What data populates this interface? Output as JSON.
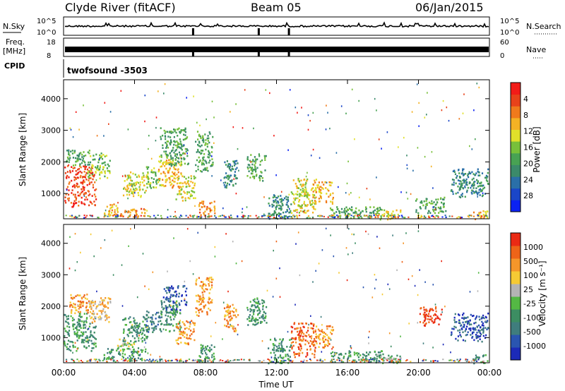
{
  "header": {
    "station": "Clyde River (fitACF)",
    "beam": "Beam 05",
    "date": "06/Jan/2015"
  },
  "strips": {
    "nsky_label": "N.Sky",
    "nsearch_label": "N.Search",
    "freq_label": "Freq.",
    "freq_unit": "[MHz]",
    "nave_label": "Nave",
    "cpid_label": "CPID",
    "cpid_value": "twofsound -3503",
    "nsky_ticks": [
      "10^5",
      "10^0"
    ],
    "nsearch_ticks": [
      "10^5",
      "10^0"
    ],
    "freq_ticks": [
      "18",
      "8"
    ],
    "nave_ticks": [
      "60",
      "0"
    ],
    "gap_hours": [
      7.3,
      11.0,
      12.7
    ]
  },
  "chart_data": [
    {
      "type": "heatmap",
      "name": "power",
      "ylabel": "Slant Range [km]",
      "xlabel": "",
      "xlim": [
        0,
        24
      ],
      "ylim": [
        200,
        4600
      ],
      "y_ticks": [
        1000,
        2000,
        3000,
        4000
      ],
      "x_tick_labels": [
        "00:00",
        "04:00",
        "08:00",
        "12:00",
        "16:00",
        "20:00",
        "00:00"
      ],
      "colorbar": {
        "label": "Power [dB]",
        "ticks": [
          "4",
          "8",
          "12",
          "16",
          "20",
          "24",
          "28"
        ],
        "colors": [
          "#0b22f2",
          "#1a46c8",
          "#2a6fa8",
          "#3b8a6a",
          "#48a253",
          "#78c03a",
          "#e0e02a",
          "#f4b224",
          "#f07a1c",
          "#e8421a",
          "#f21c18"
        ]
      },
      "regions": [
        {
          "t0": 0.0,
          "t1": 1.8,
          "r0": 600,
          "r1": 1900,
          "level": 9
        },
        {
          "t0": 0.1,
          "t1": 1.5,
          "r0": 1900,
          "r1": 2400,
          "level": 4
        },
        {
          "t0": 1.3,
          "t1": 2.6,
          "r0": 1500,
          "r1": 2300,
          "level": 5
        },
        {
          "t0": 2.2,
          "t1": 3.0,
          "r0": 300,
          "r1": 700,
          "level": 7
        },
        {
          "t0": 3.0,
          "t1": 4.6,
          "r0": 300,
          "r1": 550,
          "level": 8
        },
        {
          "t0": 3.3,
          "t1": 4.8,
          "r0": 900,
          "r1": 1700,
          "level": 6
        },
        {
          "t0": 4.6,
          "t1": 5.4,
          "r0": 1200,
          "r1": 1900,
          "level": 5
        },
        {
          "t0": 5.3,
          "t1": 6.6,
          "r0": 1200,
          "r1": 2200,
          "level": 7
        },
        {
          "t0": 5.4,
          "t1": 7.0,
          "r0": 1900,
          "r1": 3100,
          "level": 4
        },
        {
          "t0": 6.3,
          "t1": 7.4,
          "r0": 800,
          "r1": 1600,
          "level": 6
        },
        {
          "t0": 7.6,
          "t1": 8.5,
          "r0": 250,
          "r1": 800,
          "level": 8
        },
        {
          "t0": 7.4,
          "t1": 8.4,
          "r0": 1700,
          "r1": 3000,
          "level": 4
        },
        {
          "t0": 9.0,
          "t1": 9.8,
          "r0": 1200,
          "r1": 2100,
          "level": 3
        },
        {
          "t0": 10.3,
          "t1": 11.4,
          "r0": 1400,
          "r1": 2300,
          "level": 4
        },
        {
          "t0": 11.5,
          "t1": 12.8,
          "r0": 200,
          "r1": 1000,
          "level": 3
        },
        {
          "t0": 12.8,
          "t1": 14.2,
          "r0": 400,
          "r1": 1500,
          "level": 6
        },
        {
          "t0": 14.0,
          "t1": 15.2,
          "r0": 700,
          "r1": 1400,
          "level": 7
        },
        {
          "t0": 15.0,
          "t1": 18.0,
          "r0": 250,
          "r1": 600,
          "level": 4
        },
        {
          "t0": 17.5,
          "t1": 19.0,
          "r0": 200,
          "r1": 500,
          "level": 6
        },
        {
          "t0": 19.8,
          "t1": 21.5,
          "r0": 400,
          "r1": 900,
          "level": 4
        },
        {
          "t0": 21.8,
          "t1": 23.9,
          "r0": 900,
          "r1": 1800,
          "level": 3
        },
        {
          "t0": 23.0,
          "t1": 23.9,
          "r0": 200,
          "r1": 500,
          "level": 7
        }
      ]
    },
    {
      "type": "heatmap",
      "name": "velocity",
      "ylabel": "Slant Range [km]",
      "xlabel": "Time UT",
      "xlim": [
        0,
        24
      ],
      "ylim": [
        200,
        4600
      ],
      "y_ticks": [
        1000,
        2000,
        3000,
        4000
      ],
      "x_tick_labels": [
        "00:00",
        "04:00",
        "08:00",
        "12:00",
        "16:00",
        "20:00",
        "00:00"
      ],
      "colorbar": {
        "label": "Velocity [m s⁻¹]",
        "ticks": [
          "1000",
          "500",
          "100",
          "25",
          "-25",
          "-100",
          "-500",
          "-1000"
        ],
        "colors": [
          "#1c2ab8",
          "#2a55b0",
          "#3f7d7d",
          "#3c8d62",
          "#54b844",
          "#b4b4b4",
          "#f6ca34",
          "#f5962a",
          "#ee6418",
          "#ea2a14"
        ]
      },
      "regions": [
        {
          "t0": 0.0,
          "t1": 1.8,
          "r0": 600,
          "r1": 1800,
          "level": 3
        },
        {
          "t0": 0.3,
          "t1": 1.6,
          "r0": 1800,
          "r1": 2400,
          "level": 7
        },
        {
          "t0": 1.4,
          "t1": 2.6,
          "r0": 1500,
          "r1": 2300,
          "level": 6
        },
        {
          "t0": 2.2,
          "t1": 4.6,
          "r0": 300,
          "r1": 700,
          "level": 3
        },
        {
          "t0": 3.0,
          "t1": 4.0,
          "r0": 600,
          "r1": 1000,
          "level": 5
        },
        {
          "t0": 3.3,
          "t1": 4.8,
          "r0": 900,
          "r1": 1700,
          "level": 3
        },
        {
          "t0": 4.6,
          "t1": 5.4,
          "r0": 1200,
          "r1": 1900,
          "level": 2
        },
        {
          "t0": 5.3,
          "t1": 6.6,
          "r0": 1200,
          "r1": 2200,
          "level": 3
        },
        {
          "t0": 5.6,
          "t1": 6.9,
          "r0": 1900,
          "r1": 2700,
          "level": 1
        },
        {
          "t0": 6.3,
          "t1": 7.4,
          "r0": 800,
          "r1": 1600,
          "level": 7
        },
        {
          "t0": 7.6,
          "t1": 8.5,
          "r0": 250,
          "r1": 800,
          "level": 3
        },
        {
          "t0": 7.4,
          "t1": 8.4,
          "r0": 1700,
          "r1": 3000,
          "level": 7
        },
        {
          "t0": 9.0,
          "t1": 9.8,
          "r0": 1200,
          "r1": 2100,
          "level": 7
        },
        {
          "t0": 10.3,
          "t1": 11.4,
          "r0": 1400,
          "r1": 2300,
          "level": 3
        },
        {
          "t0": 11.5,
          "t1": 12.8,
          "r0": 200,
          "r1": 1000,
          "level": 3
        },
        {
          "t0": 12.8,
          "t1": 14.2,
          "r0": 400,
          "r1": 1500,
          "level": 8
        },
        {
          "t0": 14.0,
          "t1": 15.2,
          "r0": 700,
          "r1": 1400,
          "level": 7
        },
        {
          "t0": 15.0,
          "t1": 18.0,
          "r0": 250,
          "r1": 600,
          "level": 3
        },
        {
          "t0": 17.5,
          "t1": 19.0,
          "r0": 200,
          "r1": 500,
          "level": 4
        },
        {
          "t0": 20.0,
          "t1": 21.3,
          "r0": 1400,
          "r1": 2000,
          "level": 9
        },
        {
          "t0": 21.8,
          "t1": 23.9,
          "r0": 900,
          "r1": 1800,
          "level": 1
        },
        {
          "t0": 23.0,
          "t1": 23.9,
          "r0": 200,
          "r1": 500,
          "level": 3
        }
      ]
    }
  ]
}
